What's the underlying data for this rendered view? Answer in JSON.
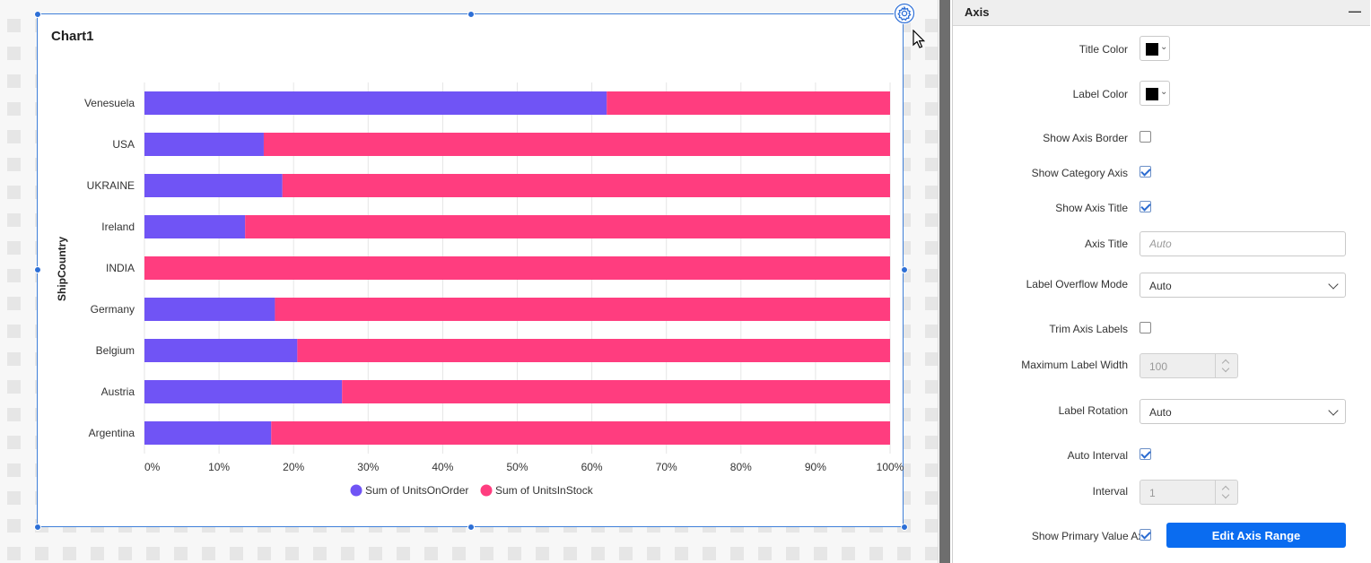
{
  "chart": {
    "title": "Chart1"
  },
  "chart_data": {
    "type": "bar",
    "orientation": "horizontal",
    "stacking": "100%",
    "title": "Chart1",
    "ylabel": "ShipCountry",
    "xlabel": "",
    "categories": [
      "Venesuela",
      "USA",
      "UKRAINE",
      "Ireland",
      "INDIA",
      "Germany",
      "Belgium",
      "Austria",
      "Argentina"
    ],
    "series": [
      {
        "name": "Sum of UnitsOnOrder",
        "color": "#7054f5",
        "values": [
          62,
          16,
          18.5,
          13.5,
          0,
          17.5,
          20.5,
          26.5,
          17
        ]
      },
      {
        "name": "Sum of UnitsInStock",
        "color": "#ff3d7f",
        "values": [
          38,
          84,
          81.5,
          86.5,
          100,
          82.5,
          79.5,
          73.5,
          83
        ]
      }
    ],
    "xticks": [
      "0%",
      "10%",
      "20%",
      "30%",
      "40%",
      "50%",
      "60%",
      "70%",
      "80%",
      "90%",
      "100%"
    ],
    "xlim": [
      0,
      100
    ],
    "grid": true,
    "legend": "bottom-center"
  },
  "panel": {
    "title": "Axis",
    "collapse_icon": "minus-icon",
    "title_color": {
      "label": "Title Color",
      "value": "#000000"
    },
    "label_color": {
      "label": "Label Color",
      "value": "#000000"
    },
    "show_axis_border": {
      "label": "Show Axis Border",
      "checked": false
    },
    "show_category_axis": {
      "label": "Show Category Axis",
      "checked": true
    },
    "show_axis_title": {
      "label": "Show Axis Title",
      "checked": true
    },
    "axis_title": {
      "label": "Axis Title",
      "value": "",
      "placeholder": "Auto"
    },
    "label_overflow_mode": {
      "label": "Label Overflow Mode",
      "value": "Auto"
    },
    "trim_axis_labels": {
      "label": "Trim Axis Labels",
      "checked": false
    },
    "max_label_width": {
      "label": "Maximum Label Width",
      "value": "100"
    },
    "label_rotation": {
      "label": "Label Rotation",
      "value": "Auto"
    },
    "auto_interval": {
      "label": "Auto Interval",
      "checked": true
    },
    "interval": {
      "label": "Interval",
      "value": "1"
    },
    "show_primary_value_axis": {
      "label": "Show Primary Value Axis",
      "checked": true
    },
    "edit_axis_range": "Edit Axis Range"
  }
}
